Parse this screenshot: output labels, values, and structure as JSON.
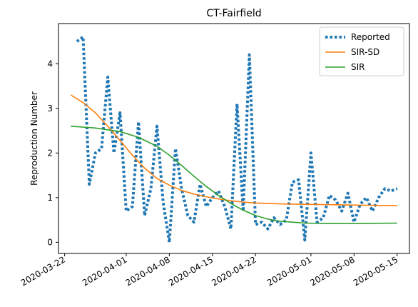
{
  "chart_data": {
    "type": "line",
    "title": "CT-Fairfield",
    "xlabel": "",
    "ylabel": "Reproduction Number",
    "x_type": "date",
    "xlim": [
      "2020-03-21",
      "2020-05-17"
    ],
    "ylim": [
      -0.25,
      4.9
    ],
    "x_ticks": [
      "2020-03-22",
      "2020-04-01",
      "2020-04-08",
      "2020-04-15",
      "2020-04-22",
      "2020-05-01",
      "2020-05-08",
      "2020-05-15"
    ],
    "y_ticks": [
      0,
      1,
      2,
      3,
      4
    ],
    "grid": false,
    "legend_position": "top-right",
    "series": [
      {
        "name": "Reported",
        "color": "#1f77b4",
        "style": "dotted",
        "x": [
          "2020-03-24",
          "2020-03-25",
          "2020-03-26",
          "2020-03-27",
          "2020-03-28",
          "2020-03-29",
          "2020-03-30",
          "2020-03-31",
          "2020-04-01",
          "2020-04-02",
          "2020-04-03",
          "2020-04-04",
          "2020-04-05",
          "2020-04-06",
          "2020-04-07",
          "2020-04-08",
          "2020-04-09",
          "2020-04-10",
          "2020-04-11",
          "2020-04-12",
          "2020-04-13",
          "2020-04-14",
          "2020-04-15",
          "2020-04-16",
          "2020-04-17",
          "2020-04-18",
          "2020-04-19",
          "2020-04-20",
          "2020-04-21",
          "2020-04-22",
          "2020-04-23",
          "2020-04-24",
          "2020-04-25",
          "2020-04-26",
          "2020-04-27",
          "2020-04-28",
          "2020-04-29",
          "2020-04-30",
          "2020-05-01",
          "2020-05-02",
          "2020-05-03",
          "2020-05-04",
          "2020-05-05",
          "2020-05-06",
          "2020-05-07",
          "2020-05-08",
          "2020-05-09",
          "2020-05-10",
          "2020-05-11",
          "2020-05-12",
          "2020-05-13",
          "2020-05-14",
          "2020-05-15"
        ],
        "values": [
          4.5,
          4.6,
          1.3,
          2.0,
          2.1,
          3.7,
          2.0,
          2.9,
          0.7,
          0.8,
          2.7,
          0.6,
          1.2,
          2.6,
          0.9,
          0.0,
          2.1,
          1.2,
          0.6,
          0.45,
          1.3,
          0.8,
          1.0,
          1.15,
          0.8,
          0.3,
          3.1,
          0.7,
          4.2,
          0.4,
          0.45,
          0.3,
          0.55,
          0.4,
          0.5,
          1.35,
          1.4,
          0.05,
          2.0,
          0.45,
          0.55,
          1.05,
          0.95,
          0.7,
          1.1,
          0.45,
          0.85,
          1.0,
          0.7,
          1.0,
          1.2,
          1.15,
          1.2
        ]
      },
      {
        "name": "SIR-SD",
        "color": "#ff7f0e",
        "style": "solid",
        "x": [
          "2020-03-23",
          "2020-03-25",
          "2020-03-27",
          "2020-03-29",
          "2020-03-31",
          "2020-04-02",
          "2020-04-04",
          "2020-04-06",
          "2020-04-08",
          "2020-04-10",
          "2020-04-12",
          "2020-04-14",
          "2020-04-16",
          "2020-04-18",
          "2020-04-20",
          "2020-04-22",
          "2020-04-26",
          "2020-04-30",
          "2020-05-05",
          "2020-05-10",
          "2020-05-15"
        ],
        "values": [
          3.3,
          3.13,
          2.9,
          2.6,
          2.28,
          1.95,
          1.66,
          1.43,
          1.28,
          1.16,
          1.08,
          1.02,
          0.97,
          0.93,
          0.9,
          0.88,
          0.86,
          0.85,
          0.84,
          0.83,
          0.82
        ]
      },
      {
        "name": "SIR",
        "color": "#2ca02c",
        "style": "solid",
        "x": [
          "2020-03-23",
          "2020-03-27",
          "2020-03-31",
          "2020-04-03",
          "2020-04-06",
          "2020-04-08",
          "2020-04-10",
          "2020-04-12",
          "2020-04-14",
          "2020-04-16",
          "2020-04-18",
          "2020-04-20",
          "2020-04-22",
          "2020-04-24",
          "2020-04-26",
          "2020-04-28",
          "2020-04-30",
          "2020-05-04",
          "2020-05-08",
          "2020-05-15"
        ],
        "values": [
          2.6,
          2.56,
          2.48,
          2.35,
          2.15,
          1.95,
          1.72,
          1.48,
          1.25,
          1.05,
          0.87,
          0.72,
          0.6,
          0.52,
          0.47,
          0.45,
          0.43,
          0.42,
          0.42,
          0.43
        ]
      }
    ]
  }
}
